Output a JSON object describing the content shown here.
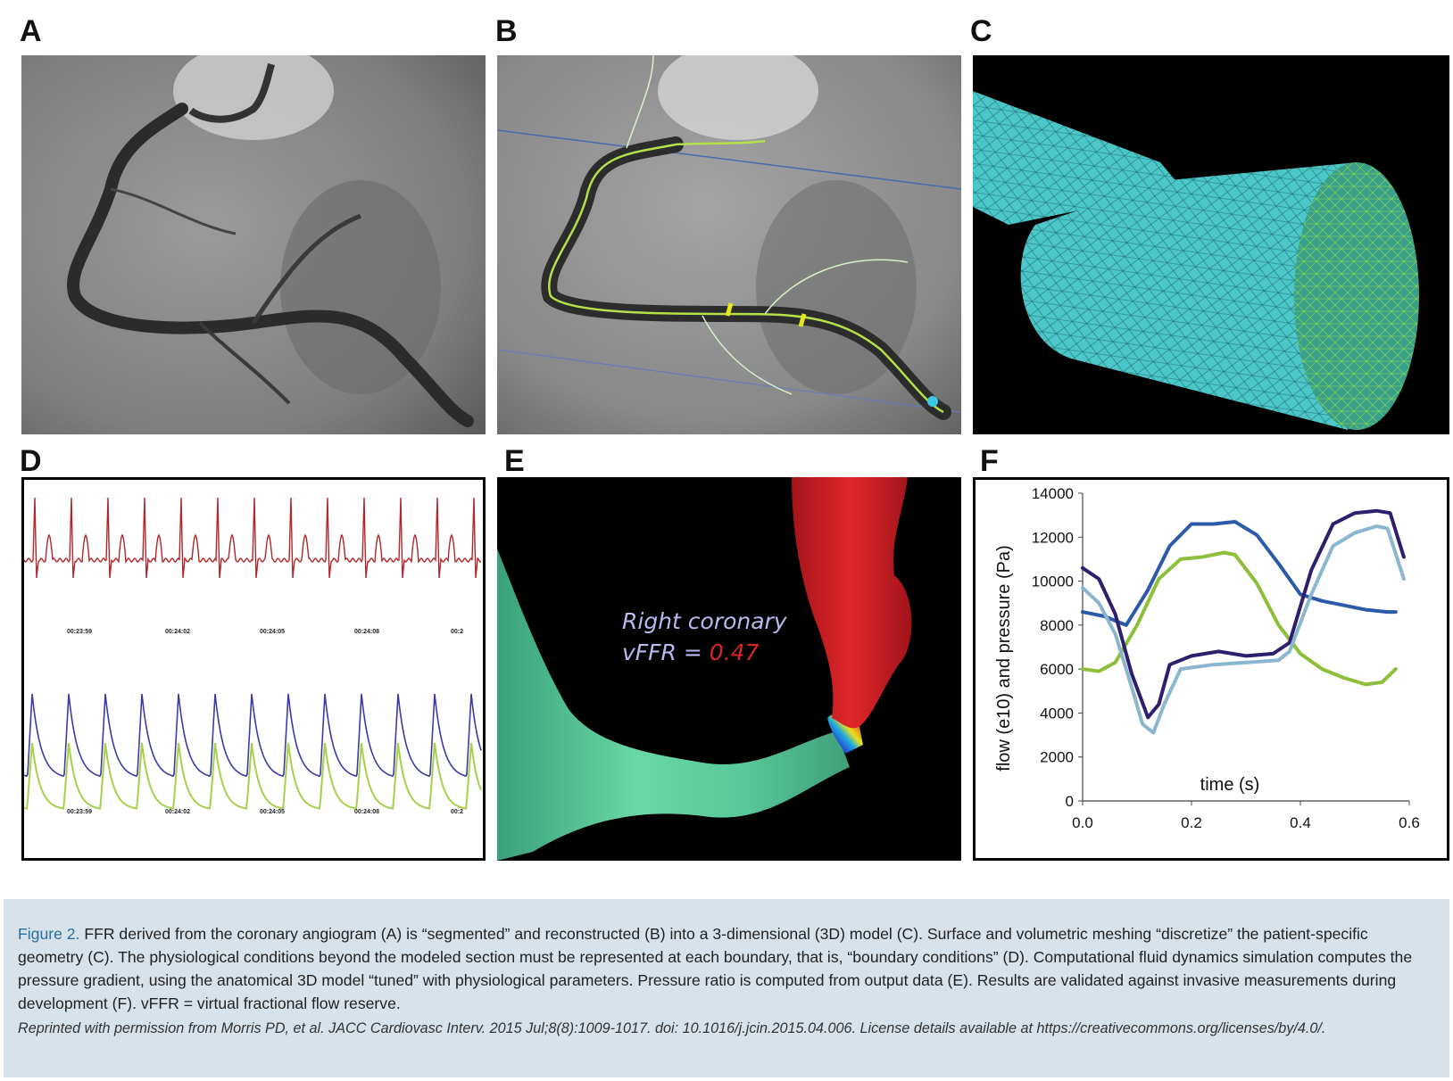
{
  "panels": {
    "a": {
      "label": "A"
    },
    "b": {
      "label": "B"
    },
    "c": {
      "label": "C"
    },
    "d": {
      "label": "D",
      "timestamps": [
        "00:23:59",
        "00:24:02",
        "00:24:05",
        "00:24:08",
        "00:2"
      ]
    },
    "e": {
      "label": "E",
      "vessel_name": "Right coronary",
      "vffr_prefix": "vFFR = ",
      "vffr_value": "0.47"
    },
    "f": {
      "label": "F"
    }
  },
  "caption": {
    "figure_label": "Figure 2.",
    "text": " FFR derived from the coronary angiogram (A) is “segmented” and reconstructed (B) into a 3-dimensional (3D) model (C). Surface and volumetric meshing “discretize” the patient-specific geometry (C). The physiological conditions beyond the modeled section must be represented at each boundary, that is, “boundary conditions” (D). Computational fluid dynamics simulation computes the pressure gradient, using the anatomical 3D model “tuned” with physiological parameters. Pressure ratio is computed from output data (E). Results are validated against invasive measurements during development (F). vFFR = virtual fractional flow reserve.",
    "credit": "Reprinted with permission from Morris PD, et al. JACC Cardiovasc Interv. 2015 Jul;8(8):1009-1017. doi: 10.1016/j.jcin.2015.04.006. License details available at https://creativecommons.org/licenses/by/4.0/."
  },
  "colors": {
    "caption_bg": "#d8e2ea",
    "figure_label": "#2a6fa0",
    "ecg": "#b0262a",
    "pressure_blue": "#3a3aa8",
    "pressure_green": "#a7d04a",
    "mesh": "#4fc8c8",
    "vessel_green": "#5ecf9a",
    "vessel_red": "#d9242a"
  },
  "chart_data": {
    "type": "line",
    "xlabel": "time (s)",
    "ylabel": "flow (e10) and pressure (Pa)",
    "xlim": [
      0,
      0.6
    ],
    "ylim": [
      0,
      14000
    ],
    "xticks": [
      "0.0",
      "0.2",
      "0.4",
      "0.6"
    ],
    "yticks": [
      "0",
      "2000",
      "4000",
      "6000",
      "8000",
      "10000",
      "12000",
      "14000"
    ],
    "grid": false,
    "series": [
      {
        "color": "#2c5aa8",
        "x": [
          0.0,
          0.04,
          0.08,
          0.12,
          0.16,
          0.2,
          0.24,
          0.28,
          0.32,
          0.36,
          0.4,
          0.44,
          0.48,
          0.52,
          0.56,
          0.575
        ],
        "y": [
          8600,
          8400,
          8000,
          9600,
          11600,
          12600,
          12600,
          12700,
          12100,
          10800,
          9400,
          9100,
          8900,
          8700,
          8600,
          8600
        ]
      },
      {
        "color": "#8dbf3a",
        "x": [
          0.0,
          0.03,
          0.06,
          0.1,
          0.14,
          0.18,
          0.22,
          0.26,
          0.28,
          0.32,
          0.36,
          0.4,
          0.44,
          0.48,
          0.52,
          0.55,
          0.575
        ],
        "y": [
          6000,
          5900,
          6300,
          8000,
          10100,
          11000,
          11100,
          11300,
          11200,
          9900,
          8000,
          6700,
          6000,
          5600,
          5300,
          5400,
          6000
        ]
      },
      {
        "color": "#2e1f6e",
        "x": [
          0.0,
          0.03,
          0.06,
          0.09,
          0.12,
          0.14,
          0.16,
          0.2,
          0.25,
          0.3,
          0.35,
          0.38,
          0.42,
          0.46,
          0.5,
          0.54,
          0.565,
          0.59
        ],
        "y": [
          10600,
          10100,
          8500,
          5800,
          3800,
          4400,
          6200,
          6600,
          6800,
          6600,
          6700,
          7200,
          10500,
          12600,
          13100,
          13200,
          13100,
          11100
        ]
      },
      {
        "color": "#8ab6cf",
        "x": [
          0.0,
          0.03,
          0.06,
          0.09,
          0.11,
          0.13,
          0.15,
          0.18,
          0.24,
          0.3,
          0.36,
          0.38,
          0.42,
          0.46,
          0.5,
          0.54,
          0.56,
          0.59
        ],
        "y": [
          9700,
          9000,
          7600,
          5200,
          3500,
          3100,
          4400,
          6000,
          6200,
          6300,
          6400,
          6800,
          9400,
          11600,
          12200,
          12500,
          12400,
          10100
        ]
      }
    ]
  }
}
